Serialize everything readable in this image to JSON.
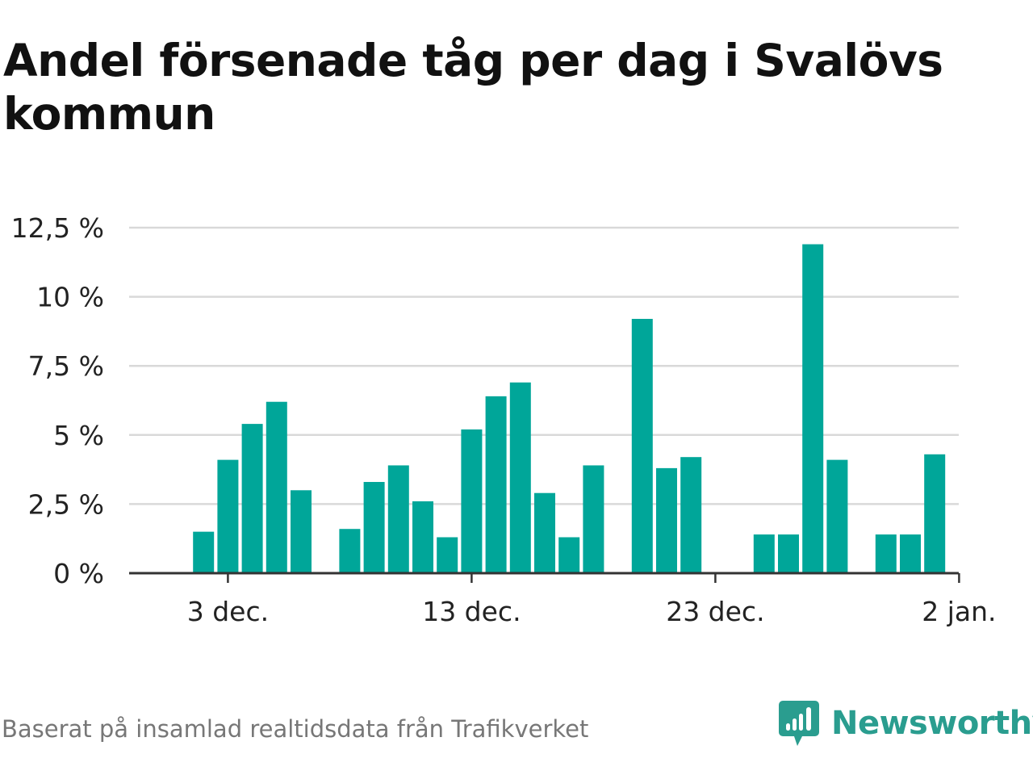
{
  "title": "Andel försenade tåg per dag i Svalövs kommun",
  "source": "Baserat på insamlad realtidsdata från Trafikverket",
  "brand": {
    "name": "Newsworthy",
    "icon": "newsworthy-logo-icon"
  },
  "colors": {
    "bar": "#00a699",
    "grid": "#d9d9d9",
    "axis": "#333333",
    "brand": "#2a9d8f",
    "source_text": "#777777"
  },
  "chart_data": {
    "type": "bar",
    "x": [
      "2023-12-01",
      "2023-12-02",
      "2023-12-03",
      "2023-12-04",
      "2023-12-05",
      "2023-12-06",
      "2023-12-07",
      "2023-12-08",
      "2023-12-09",
      "2023-12-10",
      "2023-12-11",
      "2023-12-12",
      "2023-12-13",
      "2023-12-14",
      "2023-12-15",
      "2023-12-16",
      "2023-12-17",
      "2023-12-18",
      "2023-12-19",
      "2023-12-20",
      "2023-12-21",
      "2023-12-22",
      "2023-12-23",
      "2023-12-24",
      "2023-12-25",
      "2023-12-26",
      "2023-12-27",
      "2023-12-28",
      "2023-12-29",
      "2023-12-30",
      "2023-12-31",
      "2024-01-01",
      "2024-01-02"
    ],
    "values": [
      null,
      1.5,
      4.1,
      5.4,
      6.2,
      3.0,
      null,
      1.6,
      3.3,
      3.9,
      2.6,
      1.3,
      5.2,
      6.4,
      6.9,
      2.9,
      1.3,
      3.9,
      null,
      9.2,
      3.8,
      4.2,
      null,
      null,
      1.4,
      1.4,
      11.9,
      4.1,
      null,
      1.4,
      1.4,
      4.3,
      null
    ],
    "xticks": [
      {
        "label": "3 dec.",
        "x": "2023-12-03"
      },
      {
        "label": "13 dec.",
        "x": "2023-12-13"
      },
      {
        "label": "23 dec.",
        "x": "2023-12-23"
      },
      {
        "label": "2 jan.",
        "x": "2024-01-02"
      }
    ],
    "yticks": [
      {
        "value": 0,
        "label": "0 %"
      },
      {
        "value": 2.5,
        "label": "2,5 %"
      },
      {
        "value": 5,
        "label": "5 %"
      },
      {
        "value": 7.5,
        "label": "7,5 %"
      },
      {
        "value": 10,
        "label": "10 %"
      },
      {
        "value": 12.5,
        "label": "12,5 %"
      }
    ],
    "ylim": [
      0,
      12.5
    ],
    "xlabel": "",
    "ylabel": "",
    "grid": true,
    "legend": "none"
  }
}
